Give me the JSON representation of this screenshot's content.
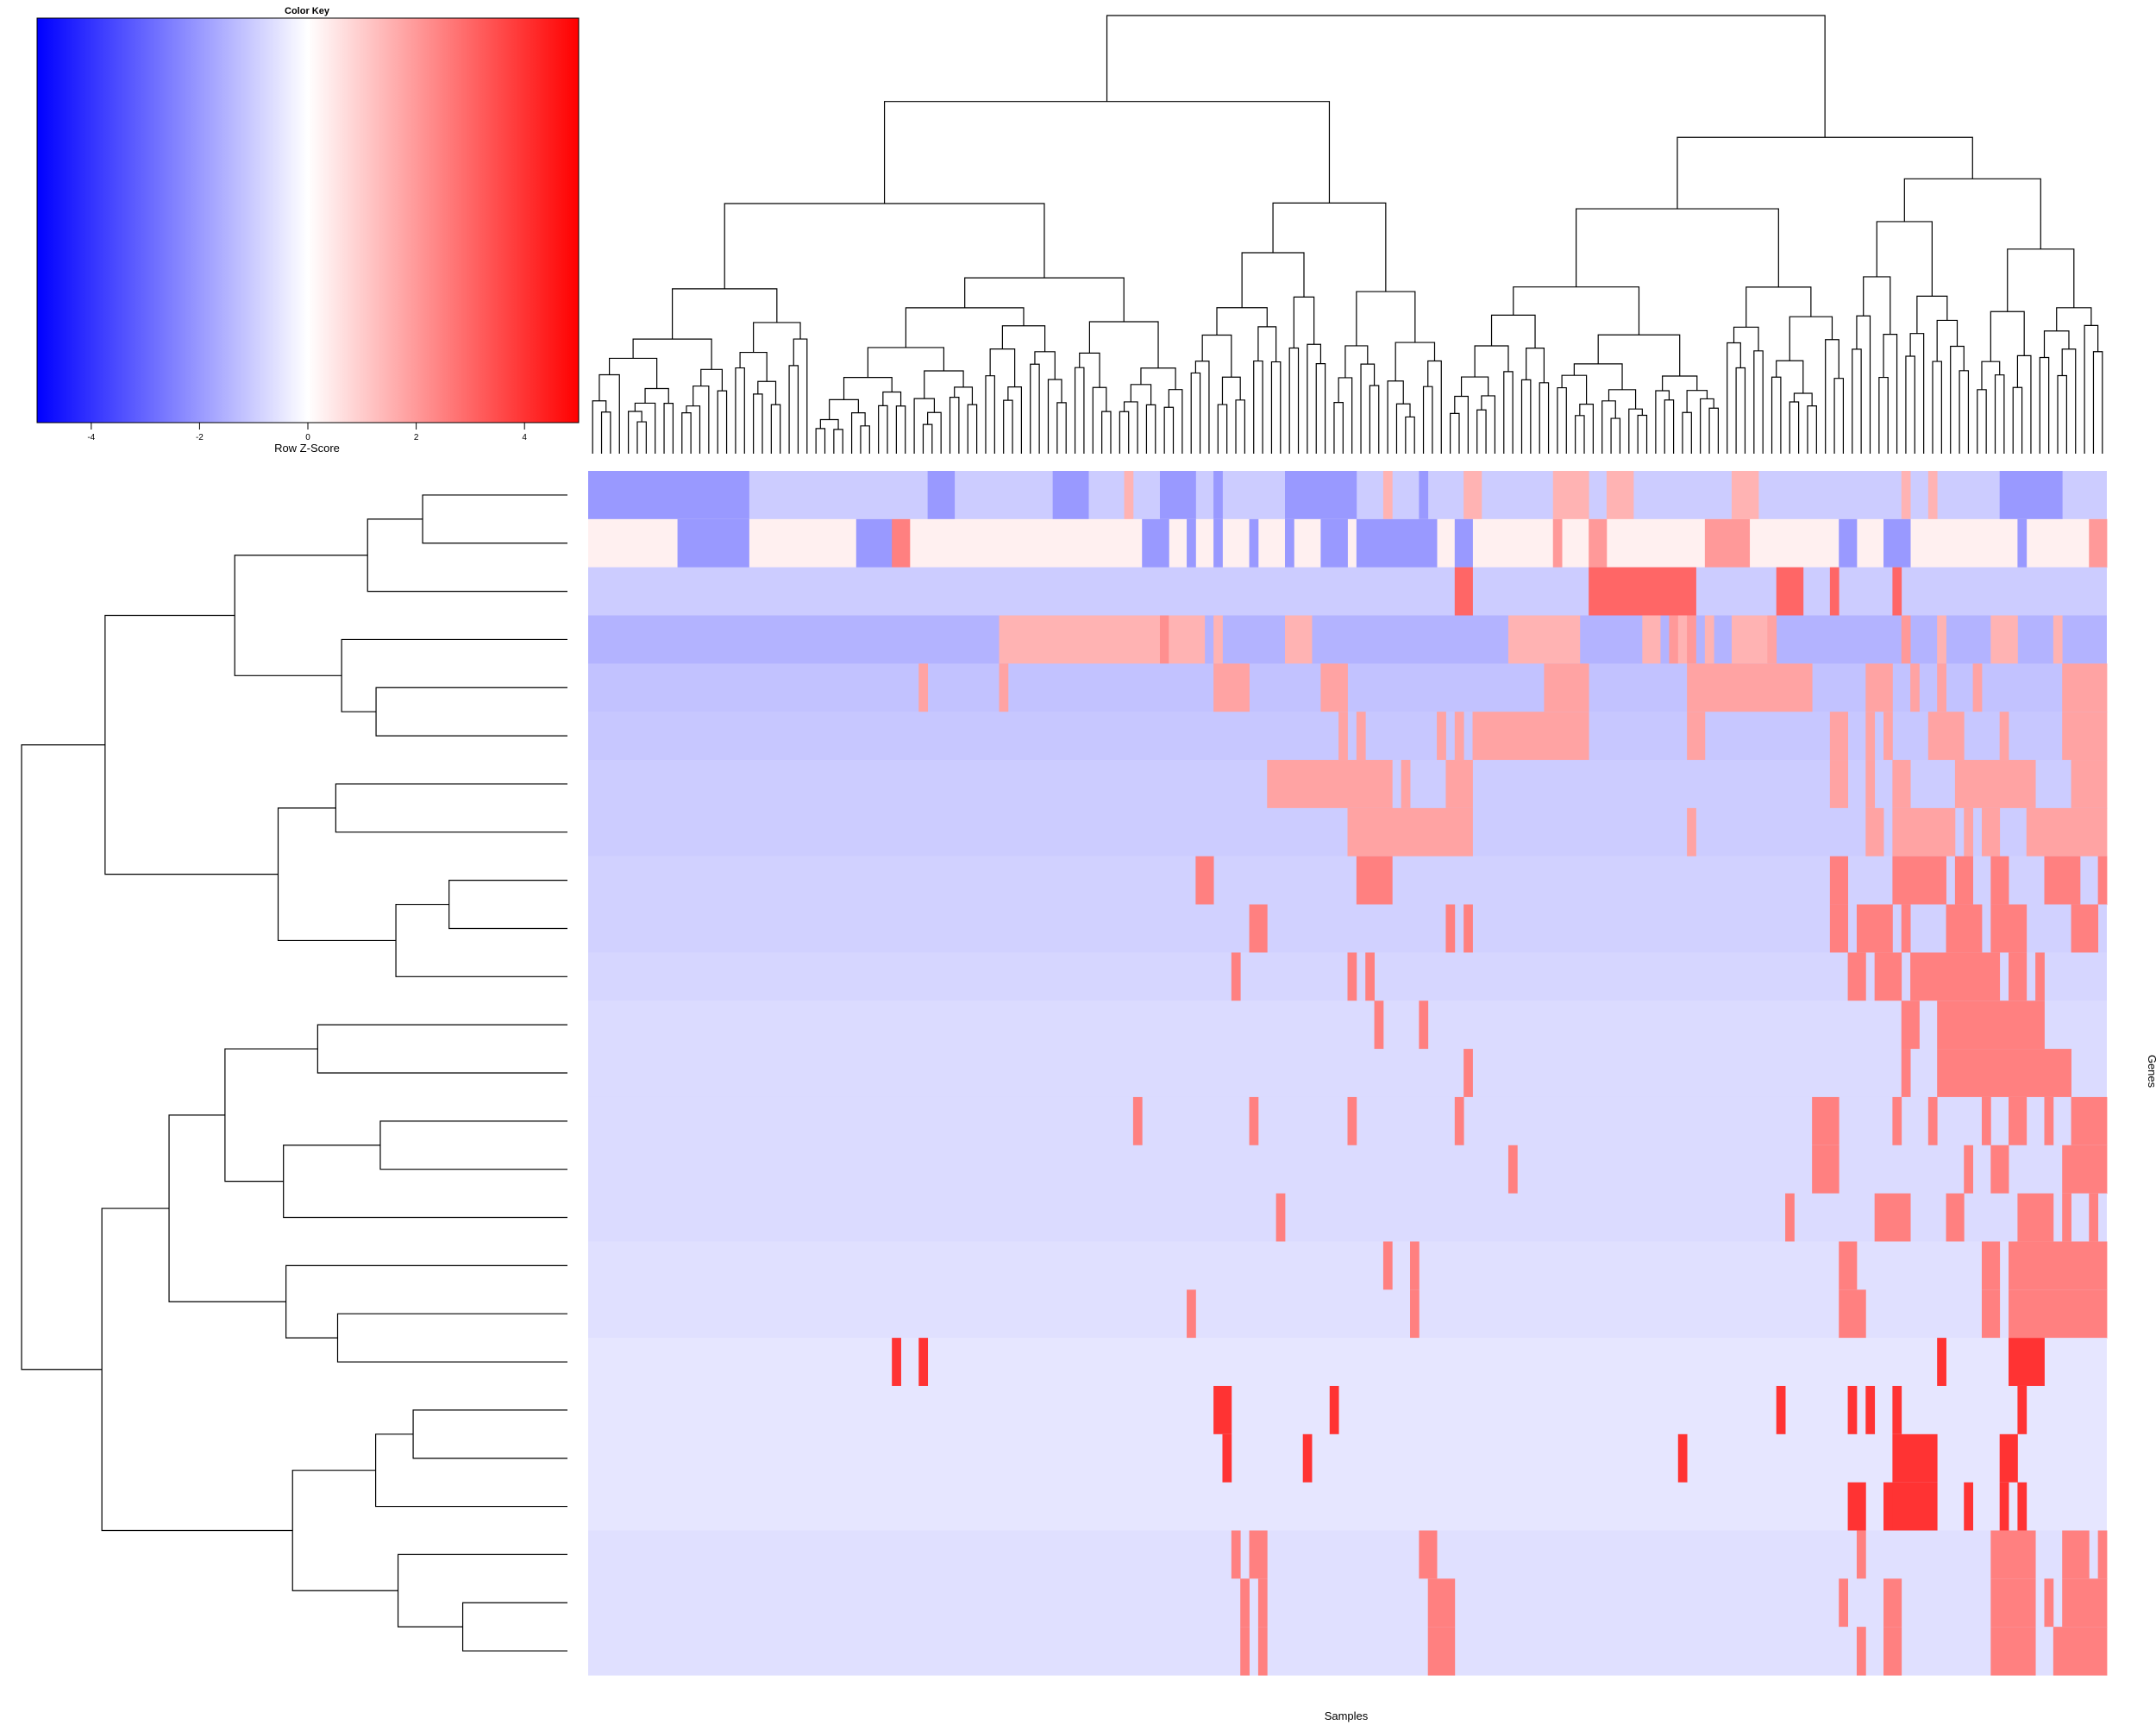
{
  "chart_data": {
    "type": "heatmap",
    "title": "",
    "xlabel": "Samples",
    "ylabel": "Genes",
    "color_key": {
      "title": "Color Key",
      "label": "Row Z-Score",
      "range": [
        -5,
        5
      ],
      "ticks": [
        -4,
        -2,
        0,
        2,
        4
      ],
      "tick_labels": [
        "-4",
        "-2",
        "0",
        "2",
        "4"
      ],
      "colors": {
        "low": "#0000ff",
        "mid": "#ffffff",
        "high": "#ff0000"
      }
    },
    "n_samples": 170,
    "n_genes": 25,
    "row_dendrogram": "25 gene rows hierarchically clustered (row dendrogram on left)",
    "column_dendrogram": "170 samples hierarchically clustered (column dendrogram on top)",
    "heatmap_rows": [
      {
        "base": -1.0,
        "runs": [
          [
            0,
            18,
            -2.0
          ],
          [
            38,
            41,
            -2.0
          ],
          [
            52,
            56,
            -2.0
          ],
          [
            60,
            61,
            1.5
          ],
          [
            64,
            68,
            -2.0
          ],
          [
            70,
            71,
            -2.0
          ],
          [
            78,
            86,
            -2.0
          ],
          [
            89,
            90,
            1.5
          ],
          [
            93,
            94,
            -2.0
          ],
          [
            98,
            100,
            1.5
          ],
          [
            108,
            112,
            1.5
          ],
          [
            114,
            117,
            1.5
          ],
          [
            128,
            131,
            1.5
          ],
          [
            147,
            148,
            1.5
          ],
          [
            150,
            151,
            1.5
          ],
          [
            158,
            165,
            -2.0
          ]
        ]
      },
      {
        "base": 0.3,
        "runs": [
          [
            10,
            18,
            -2.0
          ],
          [
            30,
            34,
            -2.0
          ],
          [
            34,
            36,
            2.5
          ],
          [
            62,
            65,
            -2.0
          ],
          [
            67,
            68,
            -2.0
          ],
          [
            70,
            71,
            -2.0
          ],
          [
            74,
            75,
            -2.0
          ],
          [
            78,
            79,
            -2.0
          ],
          [
            82,
            85,
            -2.0
          ],
          [
            86,
            95,
            -2.0
          ],
          [
            97,
            99,
            -2.0
          ],
          [
            108,
            109,
            2.0
          ],
          [
            112,
            114,
            2.0
          ],
          [
            125,
            130,
            2.0
          ],
          [
            140,
            142,
            -2.0
          ],
          [
            145,
            148,
            -2.0
          ],
          [
            160,
            161,
            -2.0
          ],
          [
            168,
            170,
            2.0
          ]
        ]
      },
      {
        "base": -1.0,
        "runs": [
          [
            97,
            99,
            3.0
          ],
          [
            112,
            124,
            3.0
          ],
          [
            133,
            136,
            3.0
          ],
          [
            139,
            140,
            3.0
          ],
          [
            146,
            147,
            3.0
          ]
        ]
      },
      {
        "base": -1.5,
        "runs": [
          [
            46,
            64,
            1.5
          ],
          [
            64,
            65,
            2.2
          ],
          [
            65,
            69,
            1.5
          ],
          [
            70,
            71,
            1.5
          ],
          [
            78,
            81,
            1.5
          ],
          [
            103,
            111,
            1.5
          ],
          [
            118,
            120,
            1.5
          ],
          [
            121,
            122,
            2.0
          ],
          [
            122,
            123,
            1.5
          ],
          [
            123,
            124,
            2.0
          ],
          [
            125,
            126,
            1.5
          ],
          [
            128,
            132,
            1.5
          ],
          [
            132,
            133,
            1.8
          ],
          [
            147,
            148,
            2.0
          ],
          [
            151,
            152,
            1.5
          ],
          [
            157,
            158,
            1.5
          ],
          [
            158,
            160,
            1.5
          ],
          [
            164,
            165,
            1.5
          ]
        ]
      },
      {
        "base": -1.2,
        "runs": [
          [
            37,
            38,
            1.8
          ],
          [
            46,
            47,
            1.8
          ],
          [
            70,
            74,
            1.8
          ],
          [
            82,
            85,
            1.8
          ],
          [
            107,
            112,
            1.8
          ],
          [
            123,
            137,
            1.8
          ],
          [
            143,
            146,
            1.8
          ],
          [
            148,
            149,
            1.8
          ],
          [
            151,
            152,
            1.8
          ],
          [
            155,
            156,
            1.8
          ],
          [
            165,
            170,
            1.8
          ]
        ]
      },
      {
        "base": -1.1,
        "runs": [
          [
            84,
            85,
            1.8
          ],
          [
            86,
            87,
            1.8
          ],
          [
            95,
            96,
            1.8
          ],
          [
            97,
            98,
            1.8
          ],
          [
            99,
            112,
            1.8
          ],
          [
            123,
            125,
            1.8
          ],
          [
            139,
            141,
            1.8
          ],
          [
            143,
            144,
            1.8
          ],
          [
            145,
            146,
            1.8
          ],
          [
            150,
            154,
            1.8
          ],
          [
            158,
            159,
            1.8
          ],
          [
            165,
            170,
            1.8
          ]
        ]
      },
      {
        "base": -1.0,
        "runs": [
          [
            76,
            90,
            1.8
          ],
          [
            91,
            92,
            1.8
          ],
          [
            96,
            99,
            1.8
          ],
          [
            139,
            141,
            1.8
          ],
          [
            143,
            144,
            1.8
          ],
          [
            146,
            148,
            1.8
          ],
          [
            153,
            162,
            1.8
          ],
          [
            166,
            170,
            1.8
          ]
        ]
      },
      {
        "base": -1.0,
        "runs": [
          [
            85,
            99,
            1.8
          ],
          [
            123,
            124,
            1.8
          ],
          [
            143,
            145,
            1.8
          ],
          [
            146,
            152,
            1.8
          ],
          [
            152,
            153,
            1.8
          ],
          [
            154,
            155,
            1.8
          ],
          [
            156,
            158,
            1.8
          ],
          [
            161,
            170,
            1.8
          ]
        ]
      },
      {
        "base": -0.9,
        "runs": [
          [
            68,
            70,
            2.5
          ],
          [
            86,
            90,
            2.5
          ],
          [
            139,
            141,
            2.5
          ],
          [
            146,
            152,
            2.5
          ],
          [
            153,
            155,
            2.5
          ],
          [
            157,
            159,
            2.5
          ],
          [
            163,
            167,
            2.5
          ],
          [
            169,
            170,
            2.5
          ]
        ]
      },
      {
        "base": -0.9,
        "runs": [
          [
            74,
            76,
            2.5
          ],
          [
            96,
            97,
            2.5
          ],
          [
            98,
            99,
            2.5
          ],
          [
            139,
            141,
            2.5
          ],
          [
            142,
            146,
            2.5
          ],
          [
            147,
            148,
            2.5
          ],
          [
            152,
            156,
            2.5
          ],
          [
            157,
            161,
            2.5
          ],
          [
            166,
            169,
            2.5
          ]
        ]
      },
      {
        "base": -0.8,
        "runs": [
          [
            72,
            73,
            2.5
          ],
          [
            85,
            86,
            2.5
          ],
          [
            87,
            88,
            2.5
          ],
          [
            141,
            143,
            2.5
          ],
          [
            144,
            147,
            2.5
          ],
          [
            148,
            158,
            2.5
          ],
          [
            159,
            161,
            2.5
          ],
          [
            162,
            163,
            2.5
          ]
        ]
      },
      {
        "base": -0.7,
        "runs": [
          [
            88,
            89,
            2.5
          ],
          [
            93,
            94,
            2.5
          ],
          [
            147,
            149,
            2.5
          ],
          [
            151,
            154,
            2.5
          ],
          [
            154,
            163,
            2.5
          ]
        ]
      },
      {
        "base": -0.7,
        "runs": [
          [
            98,
            99,
            2.5
          ],
          [
            147,
            148,
            2.5
          ],
          [
            151,
            155,
            2.5
          ],
          [
            155,
            166,
            2.5
          ]
        ]
      },
      {
        "base": -0.7,
        "runs": [
          [
            61,
            62,
            2.5
          ],
          [
            74,
            75,
            2.5
          ],
          [
            85,
            86,
            2.5
          ],
          [
            97,
            98,
            2.5
          ],
          [
            137,
            140,
            2.5
          ],
          [
            146,
            147,
            2.5
          ],
          [
            150,
            151,
            2.5
          ],
          [
            156,
            157,
            2.5
          ],
          [
            159,
            161,
            2.5
          ],
          [
            163,
            164,
            2.5
          ],
          [
            166,
            170,
            2.5
          ]
        ]
      },
      {
        "base": -0.7,
        "runs": [
          [
            103,
            104,
            2.5
          ],
          [
            137,
            140,
            2.5
          ],
          [
            154,
            155,
            2.5
          ],
          [
            157,
            159,
            2.5
          ],
          [
            165,
            170,
            2.5
          ]
        ]
      },
      {
        "base": -0.7,
        "runs": [
          [
            77,
            78,
            2.5
          ],
          [
            134,
            135,
            2.5
          ],
          [
            144,
            148,
            2.5
          ],
          [
            152,
            154,
            2.5
          ],
          [
            160,
            164,
            2.5
          ],
          [
            165,
            166,
            2.5
          ],
          [
            168,
            169,
            2.5
          ]
        ]
      },
      {
        "base": -0.6,
        "runs": [
          [
            89,
            90,
            2.5
          ],
          [
            92,
            93,
            2.5
          ],
          [
            140,
            142,
            2.5
          ],
          [
            156,
            158,
            2.5
          ],
          [
            159,
            170,
            2.5
          ]
        ]
      },
      {
        "base": -0.6,
        "runs": [
          [
            67,
            68,
            2.5
          ],
          [
            92,
            93,
            2.5
          ],
          [
            140,
            143,
            2.5
          ],
          [
            156,
            158,
            2.5
          ],
          [
            159,
            170,
            2.5
          ]
        ]
      },
      {
        "base": -0.5,
        "runs": [
          [
            34,
            35,
            4.0
          ],
          [
            37,
            38,
            4.0
          ],
          [
            151,
            152,
            4.0
          ],
          [
            159,
            163,
            4.0
          ]
        ]
      },
      {
        "base": -0.5,
        "runs": [
          [
            70,
            72,
            4.0
          ],
          [
            83,
            84,
            4.0
          ],
          [
            133,
            134,
            4.0
          ],
          [
            141,
            142,
            4.0
          ],
          [
            143,
            144,
            4.0
          ],
          [
            146,
            147,
            4.0
          ],
          [
            160,
            161,
            4.0
          ]
        ]
      },
      {
        "base": -0.5,
        "runs": [
          [
            71,
            72,
            4.0
          ],
          [
            80,
            81,
            4.0
          ],
          [
            122,
            123,
            4.0
          ],
          [
            146,
            151,
            4.0
          ],
          [
            158,
            160,
            4.0
          ]
        ]
      },
      {
        "base": -0.5,
        "runs": [
          [
            141,
            143,
            4.0
          ],
          [
            145,
            146,
            4.0
          ],
          [
            146,
            151,
            4.0
          ],
          [
            154,
            155,
            4.0
          ],
          [
            158,
            159,
            4.0
          ],
          [
            160,
            161,
            4.0
          ]
        ]
      },
      {
        "base": -0.6,
        "runs": [
          [
            72,
            73,
            2.5
          ],
          [
            74,
            76,
            2.5
          ],
          [
            93,
            95,
            2.5
          ],
          [
            142,
            143,
            2.5
          ],
          [
            157,
            162,
            2.5
          ],
          [
            165,
            168,
            2.5
          ],
          [
            169,
            170,
            2.5
          ]
        ]
      },
      {
        "base": -0.6,
        "runs": [
          [
            73,
            74,
            2.5
          ],
          [
            75,
            76,
            2.5
          ],
          [
            94,
            97,
            2.5
          ],
          [
            140,
            141,
            2.5
          ],
          [
            145,
            147,
            2.5
          ],
          [
            157,
            162,
            2.5
          ],
          [
            163,
            164,
            2.5
          ],
          [
            165,
            170,
            2.5
          ]
        ]
      },
      {
        "base": -0.6,
        "runs": [
          [
            73,
            74,
            2.5
          ],
          [
            75,
            76,
            2.5
          ],
          [
            94,
            97,
            2.5
          ],
          [
            142,
            143,
            2.5
          ],
          [
            145,
            147,
            2.5
          ],
          [
            157,
            162,
            2.5
          ],
          [
            164,
            170,
            2.5
          ]
        ]
      }
    ]
  }
}
